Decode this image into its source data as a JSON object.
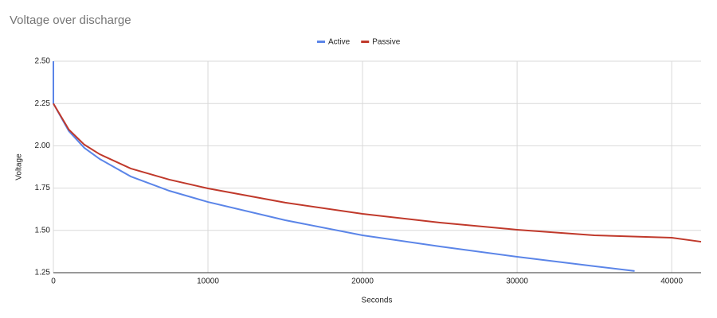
{
  "chart_data": {
    "type": "line",
    "title": "Voltage over discharge",
    "x_label": "Seconds",
    "y_label": "Voltage",
    "legend": "top",
    "grid": true,
    "xlim": [
      0,
      41900
    ],
    "xticks": [
      0,
      10000,
      20000,
      30000,
      40000
    ],
    "ylim": [
      1.25,
      2.5
    ],
    "yticks": [
      {
        "value": 2.5,
        "label": "2.50"
      },
      {
        "value": 2.25,
        "label": "2.25"
      },
      {
        "value": 2.0,
        "label": "2.00"
      },
      {
        "value": 1.75,
        "label": "1.75"
      },
      {
        "value": 1.5,
        "label": "1.50"
      },
      {
        "value": 1.25,
        "label": "1.25"
      }
    ],
    "series": [
      {
        "name": "Active",
        "color": "#5b85e8",
        "x": [
          0,
          0,
          1000,
          2000,
          3000,
          5000,
          7500,
          10000,
          15000,
          20000,
          25000,
          30000,
          35000,
          37600
        ],
        "values": [
          2.5,
          2.25,
          2.087,
          1.988,
          1.922,
          1.819,
          1.734,
          1.668,
          1.56,
          1.471,
          1.405,
          1.344,
          1.288,
          1.26
        ]
      },
      {
        "name": "Passive",
        "color": "#c0392b",
        "x": [
          0,
          1000,
          2000,
          3000,
          5000,
          7500,
          10000,
          15000,
          20000,
          25000,
          30000,
          35000,
          40000,
          41900
        ],
        "values": [
          2.25,
          2.096,
          2.007,
          1.95,
          1.866,
          1.8,
          1.748,
          1.664,
          1.598,
          1.546,
          1.504,
          1.471,
          1.457,
          1.433
        ]
      }
    ]
  }
}
